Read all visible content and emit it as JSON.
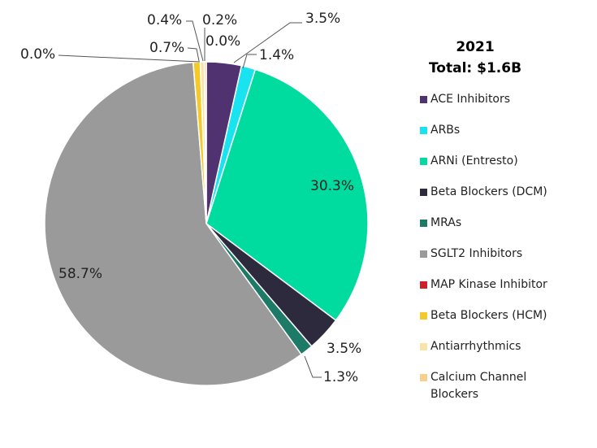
{
  "chart_data": {
    "type": "pie",
    "title": "2021",
    "subtitle": "Total: $1.6B",
    "legend_position": "right",
    "slices": [
      {
        "label": "ACE Inhibitors",
        "value": 3.5,
        "text": "3.5%",
        "color": "#513271"
      },
      {
        "label": "ARBs",
        "value": 1.4,
        "text": "1.4%",
        "color": "#19e3ee"
      },
      {
        "label": "ARNi (Entresto)",
        "value": 30.3,
        "text": "30.3%",
        "color": "#00dba0"
      },
      {
        "label": "Beta Blockers (DCM)",
        "value": 3.5,
        "text": "3.5%",
        "color": "#2d2a3e"
      },
      {
        "label": "MRAs",
        "value": 1.3,
        "text": "1.3%",
        "color": "#1c7a66"
      },
      {
        "label": "SGLT2 Inhibitors",
        "value": 58.7,
        "text": "58.7%",
        "color": "#9a9a9a"
      },
      {
        "label": "MAP Kinase Inhibitor",
        "value": 0.0,
        "text": "0.0%",
        "color": "#d0202a"
      },
      {
        "label": "Beta Blockers (HCM)",
        "value": 0.7,
        "text": "0.7%",
        "color": "#f5c92a"
      },
      {
        "label": "Antiarrhythmics",
        "value": 0.4,
        "text": "0.4%",
        "color": "#f9e3a6"
      },
      {
        "label": "Calcium Channel Blockers",
        "value": 0.2,
        "text": "0.2%",
        "color": "#f8cf8c"
      }
    ],
    "extra_labels": [
      "0.0%"
    ]
  }
}
